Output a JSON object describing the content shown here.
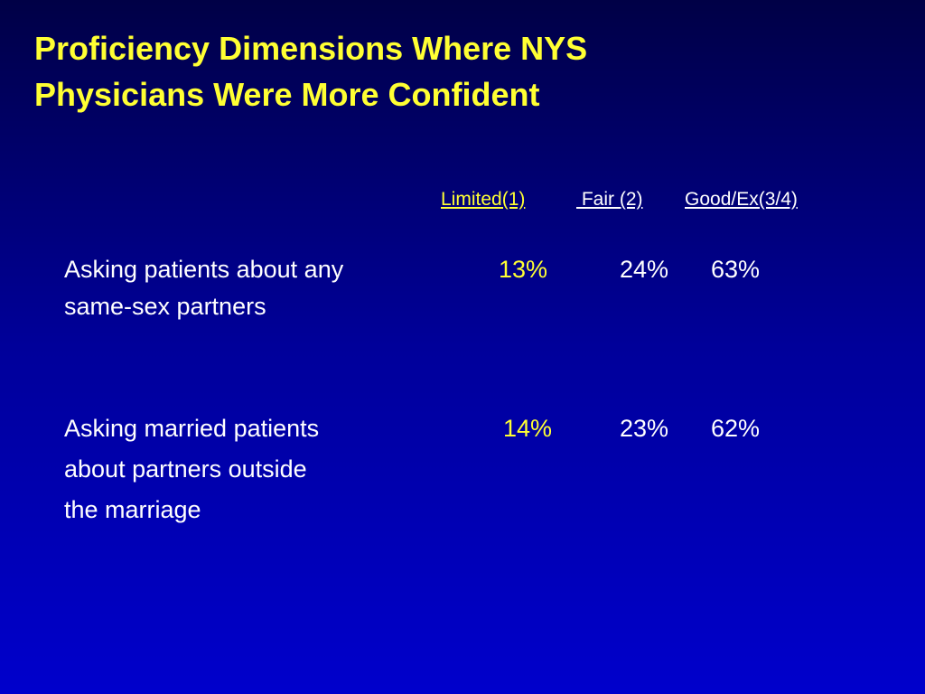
{
  "title": {
    "lines": [
      "Proficiency Dimensions Where NYS",
      "Physicians Were More Confident"
    ]
  },
  "table": {
    "header": [
      "Limited(1)",
      " Fair (2)",
      "Good/Ex(3/4)"
    ],
    "rows": [
      {
        "label": [
          "Asking patients about any",
          "same-sex partners"
        ],
        "cells": [
          "13%",
          "24%",
          "63%"
        ]
      },
      {
        "label": [
          "Asking married patients",
          "about partners outside",
          "the marriage"
        ],
        "cells": [
          "14%",
          "23%",
          "62%"
        ]
      }
    ]
  }
}
